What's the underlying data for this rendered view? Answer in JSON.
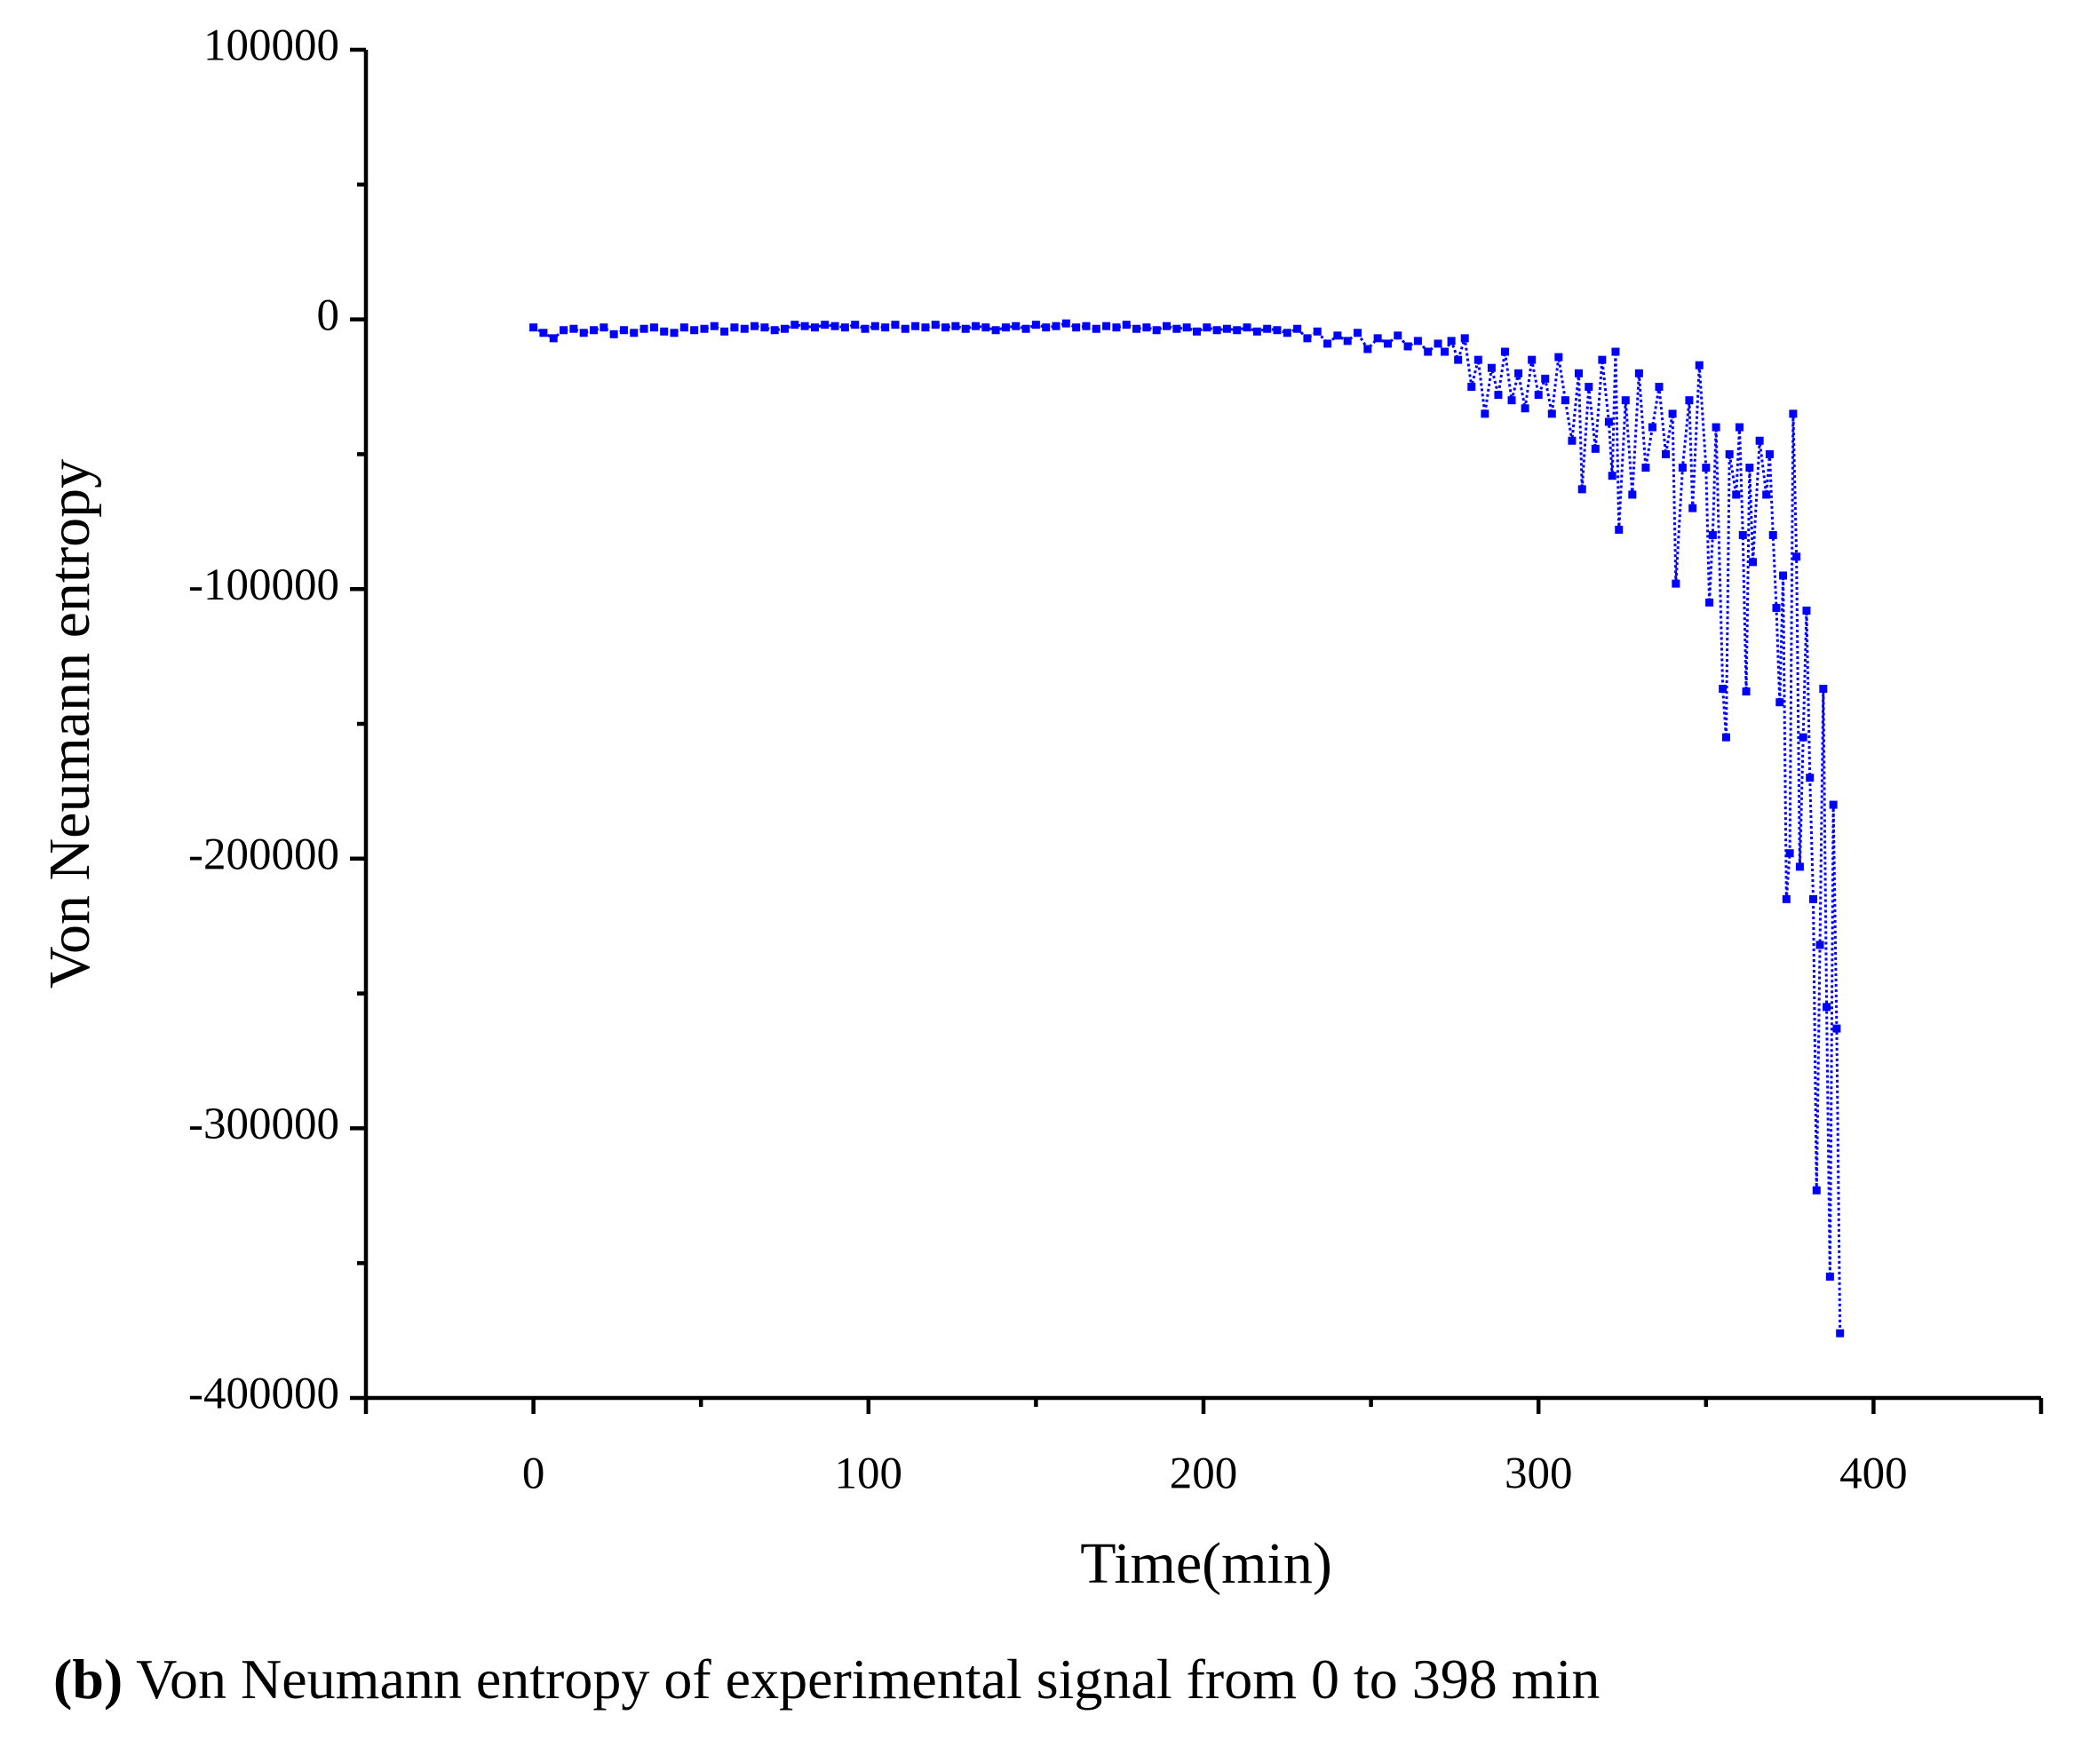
{
  "chart_data": {
    "type": "line",
    "xlabel": "Time(min)",
    "ylabel": "Von Neumann entropy",
    "caption_label": "(b)",
    "caption": "Von Neumann entropy of experimental signal from 0 to 398 min",
    "xlim": [
      -50,
      450
    ],
    "xticks": [
      0,
      100,
      200,
      300,
      400
    ],
    "ylim": [
      -400000,
      100000
    ],
    "yticks": [
      -400000,
      -300000,
      -200000,
      -100000,
      0,
      100000
    ],
    "marker": "square",
    "line_style": "dotted",
    "x": [
      0,
      3,
      6,
      9,
      12,
      15,
      18,
      21,
      24,
      27,
      30,
      33,
      36,
      39,
      42,
      45,
      48,
      51,
      54,
      57,
      60,
      63,
      66,
      69,
      72,
      75,
      78,
      81,
      84,
      87,
      90,
      93,
      96,
      99,
      102,
      105,
      108,
      111,
      114,
      117,
      120,
      123,
      126,
      129,
      132,
      135,
      138,
      141,
      144,
      147,
      150,
      153,
      156,
      159,
      162,
      165,
      168,
      171,
      174,
      177,
      180,
      183,
      186,
      189,
      192,
      195,
      198,
      201,
      204,
      207,
      210,
      213,
      216,
      219,
      222,
      225,
      228,
      231,
      234,
      237,
      240,
      243,
      246,
      249,
      252,
      255,
      258,
      261,
      264,
      267,
      270,
      272,
      274,
      276,
      278,
      280,
      282,
      284,
      286,
      288,
      290,
      292,
      294,
      296,
      298,
      300,
      302,
      304,
      306,
      308,
      310,
      312,
      313,
      315,
      317,
      319,
      321,
      322,
      323,
      324,
      326,
      328,
      330,
      332,
      334,
      336,
      338,
      340,
      341,
      343,
      345,
      346,
      348,
      350,
      351,
      352,
      353,
      355,
      356,
      357,
      359,
      360,
      361,
      362,
      363,
      364,
      366,
      368,
      369,
      370,
      371,
      372,
      373,
      374,
      375,
      376,
      377,
      378,
      379,
      380,
      381,
      382,
      383,
      384,
      385,
      386,
      387,
      388,
      389,
      390
    ],
    "series": [
      {
        "name": "Von Neumann entropy",
        "color": "#0000ff",
        "values": [
          -3000,
          -5000,
          -7000,
          -4000,
          -3500,
          -5000,
          -4000,
          -3000,
          -5500,
          -4000,
          -5000,
          -3500,
          -3000,
          -4500,
          -5000,
          -3000,
          -4000,
          -3500,
          -2500,
          -4500,
          -3000,
          -3500,
          -2500,
          -3000,
          -4000,
          -3500,
          -2000,
          -2500,
          -3000,
          -2000,
          -2500,
          -3000,
          -2000,
          -3500,
          -2500,
          -3000,
          -2000,
          -3500,
          -2500,
          -3000,
          -2000,
          -3000,
          -2500,
          -3500,
          -2500,
          -3000,
          -4000,
          -3000,
          -2500,
          -3500,
          -2000,
          -3000,
          -2500,
          -1500,
          -3000,
          -2500,
          -3500,
          -2500,
          -3000,
          -2000,
          -3500,
          -3000,
          -4000,
          -2500,
          -3500,
          -3000,
          -4500,
          -3000,
          -4000,
          -3500,
          -4000,
          -3000,
          -4500,
          -3500,
          -4000,
          -5000,
          -3500,
          -7000,
          -4500,
          -9000,
          -6000,
          -8000,
          -5000,
          -11000,
          -7000,
          -9000,
          -6000,
          -10000,
          -8000,
          -12000,
          -9000,
          -12000,
          -8000,
          -15000,
          -7000,
          -25000,
          -15000,
          -35000,
          -18000,
          -28000,
          -12000,
          -30000,
          -20000,
          -33000,
          -15000,
          -28000,
          -22000,
          -35000,
          -14000,
          -30000,
          -45000,
          -20000,
          -63000,
          -25000,
          -48000,
          -15000,
          -38000,
          -58000,
          -12000,
          -78000,
          -30000,
          -65000,
          -20000,
          -55000,
          -40000,
          -25000,
          -50000,
          -35000,
          -98000,
          -55000,
          -30000,
          -70000,
          -17000,
          -55000,
          -105000,
          -80000,
          -40000,
          -137000,
          -155000,
          -50000,
          -65000,
          -40000,
          -80000,
          -138000,
          -55000,
          -90000,
          -45000,
          -65000,
          -50000,
          -80000,
          -107000,
          -142000,
          -95000,
          -215000,
          -198000,
          -35000,
          -88000,
          -203000,
          -155000,
          -108000,
          -170000,
          -215000,
          -323000,
          -232000,
          -137000,
          -255000,
          -355000,
          -180000,
          -263000,
          -376000
        ]
      }
    ]
  }
}
